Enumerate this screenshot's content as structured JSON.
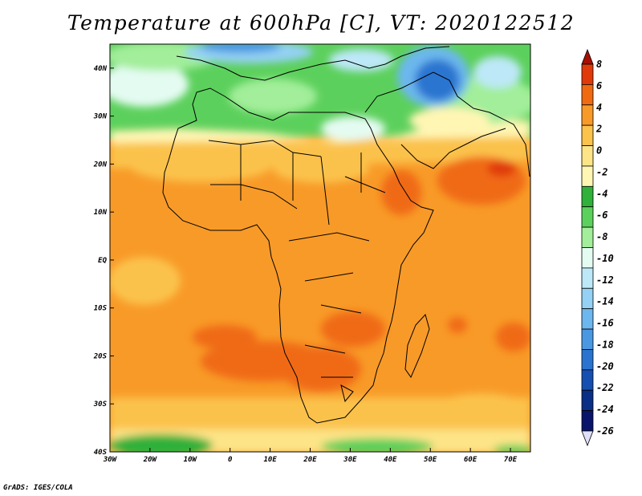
{
  "title": "Temperature at 600hPa [C], VT: 2020122512",
  "credit": "GrADS: IGES/COLA",
  "map": {
    "region": "Africa",
    "variable": "Temperature",
    "level": "600hPa",
    "units": "C",
    "valid_time": "2020122512",
    "lon_range": [
      -30,
      75
    ],
    "lat_range": [
      -40,
      45
    ],
    "lat_labels": [
      "40N",
      "30N",
      "20N",
      "10N",
      "EQ",
      "10S",
      "20S",
      "30S",
      "40S"
    ],
    "lat_values": [
      40,
      30,
      20,
      10,
      0,
      -10,
      -20,
      -30,
      -40
    ],
    "lon_labels": [
      "30W",
      "20W",
      "10W",
      "0",
      "10E",
      "20E",
      "30E",
      "40E",
      "50E",
      "60E",
      "70E"
    ],
    "lon_values": [
      -30,
      -20,
      -10,
      0,
      10,
      20,
      30,
      40,
      50,
      60,
      70
    ]
  },
  "colorbar": {
    "labels": [
      "8",
      "6",
      "4",
      "2",
      "0",
      "-2",
      "-4",
      "-6",
      "-8",
      "-10",
      "-12",
      "-14",
      "-16",
      "-18",
      "-20",
      "-22",
      "-24",
      "-26"
    ],
    "colors": [
      "#a50f02",
      "#e03a0a",
      "#f06a12",
      "#f89a28",
      "#fbc24c",
      "#fde487",
      "#fff6b4",
      "#2fb13a",
      "#5cd05c",
      "#a2ee9a",
      "#e4fbf2",
      "#bde8f8",
      "#94d1f4",
      "#6cb7ee",
      "#4a98e2",
      "#2a74d0",
      "#1550b0",
      "#0a2f86",
      "#08156a",
      "#dfe0f6"
    ]
  }
}
